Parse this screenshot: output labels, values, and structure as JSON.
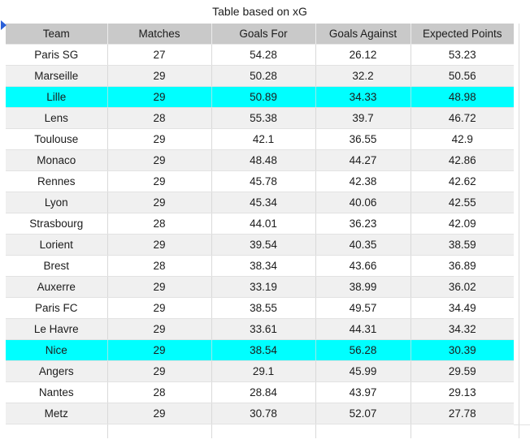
{
  "title": "Table based on xG",
  "colors": {
    "highlight": "#00FFFF",
    "header_bg": "#C9C9C9",
    "alt_row_bg": "#F0F0F0",
    "marker_blue": "#2A5FD7"
  },
  "table": {
    "columns": [
      "Team",
      "Matches",
      "Goals For",
      "Goals Against",
      "Expected Points"
    ],
    "rows": [
      {
        "team": "Paris SG",
        "matches": "27",
        "goals_for": "54.28",
        "goals_against": "26.12",
        "expected_points": "53.23",
        "highlight": false
      },
      {
        "team": "Marseille",
        "matches": "29",
        "goals_for": "50.28",
        "goals_against": "32.2",
        "expected_points": "50.56",
        "highlight": false
      },
      {
        "team": "Lille",
        "matches": "29",
        "goals_for": "50.89",
        "goals_against": "34.33",
        "expected_points": "48.98",
        "highlight": true
      },
      {
        "team": "Lens",
        "matches": "28",
        "goals_for": "55.38",
        "goals_against": "39.7",
        "expected_points": "46.72",
        "highlight": false
      },
      {
        "team": "Toulouse",
        "matches": "29",
        "goals_for": "42.1",
        "goals_against": "36.55",
        "expected_points": "42.9",
        "highlight": false
      },
      {
        "team": "Monaco",
        "matches": "29",
        "goals_for": "48.48",
        "goals_against": "44.27",
        "expected_points": "42.86",
        "highlight": false
      },
      {
        "team": "Rennes",
        "matches": "29",
        "goals_for": "45.78",
        "goals_against": "42.38",
        "expected_points": "42.62",
        "highlight": false
      },
      {
        "team": "Lyon",
        "matches": "29",
        "goals_for": "45.34",
        "goals_against": "40.06",
        "expected_points": "42.55",
        "highlight": false
      },
      {
        "team": "Strasbourg",
        "matches": "28",
        "goals_for": "44.01",
        "goals_against": "36.23",
        "expected_points": "42.09",
        "highlight": false
      },
      {
        "team": "Lorient",
        "matches": "29",
        "goals_for": "39.54",
        "goals_against": "40.35",
        "expected_points": "38.59",
        "highlight": false
      },
      {
        "team": "Brest",
        "matches": "28",
        "goals_for": "38.34",
        "goals_against": "43.66",
        "expected_points": "36.89",
        "highlight": false
      },
      {
        "team": "Auxerre",
        "matches": "29",
        "goals_for": "33.19",
        "goals_against": "38.99",
        "expected_points": "36.02",
        "highlight": false
      },
      {
        "team": "Paris FC",
        "matches": "29",
        "goals_for": "38.55",
        "goals_against": "49.57",
        "expected_points": "34.49",
        "highlight": false
      },
      {
        "team": "Le Havre",
        "matches": "29",
        "goals_for": "33.61",
        "goals_against": "44.31",
        "expected_points": "34.32",
        "highlight": false
      },
      {
        "team": "Nice",
        "matches": "29",
        "goals_for": "38.54",
        "goals_against": "56.28",
        "expected_points": "30.39",
        "highlight": true
      },
      {
        "team": "Angers",
        "matches": "29",
        "goals_for": "29.1",
        "goals_against": "45.99",
        "expected_points": "29.59",
        "highlight": false
      },
      {
        "team": "Nantes",
        "matches": "28",
        "goals_for": "28.84",
        "goals_against": "43.97",
        "expected_points": "29.13",
        "highlight": false
      },
      {
        "team": "Metz",
        "matches": "29",
        "goals_for": "30.78",
        "goals_against": "52.07",
        "expected_points": "27.78",
        "highlight": false
      }
    ]
  }
}
